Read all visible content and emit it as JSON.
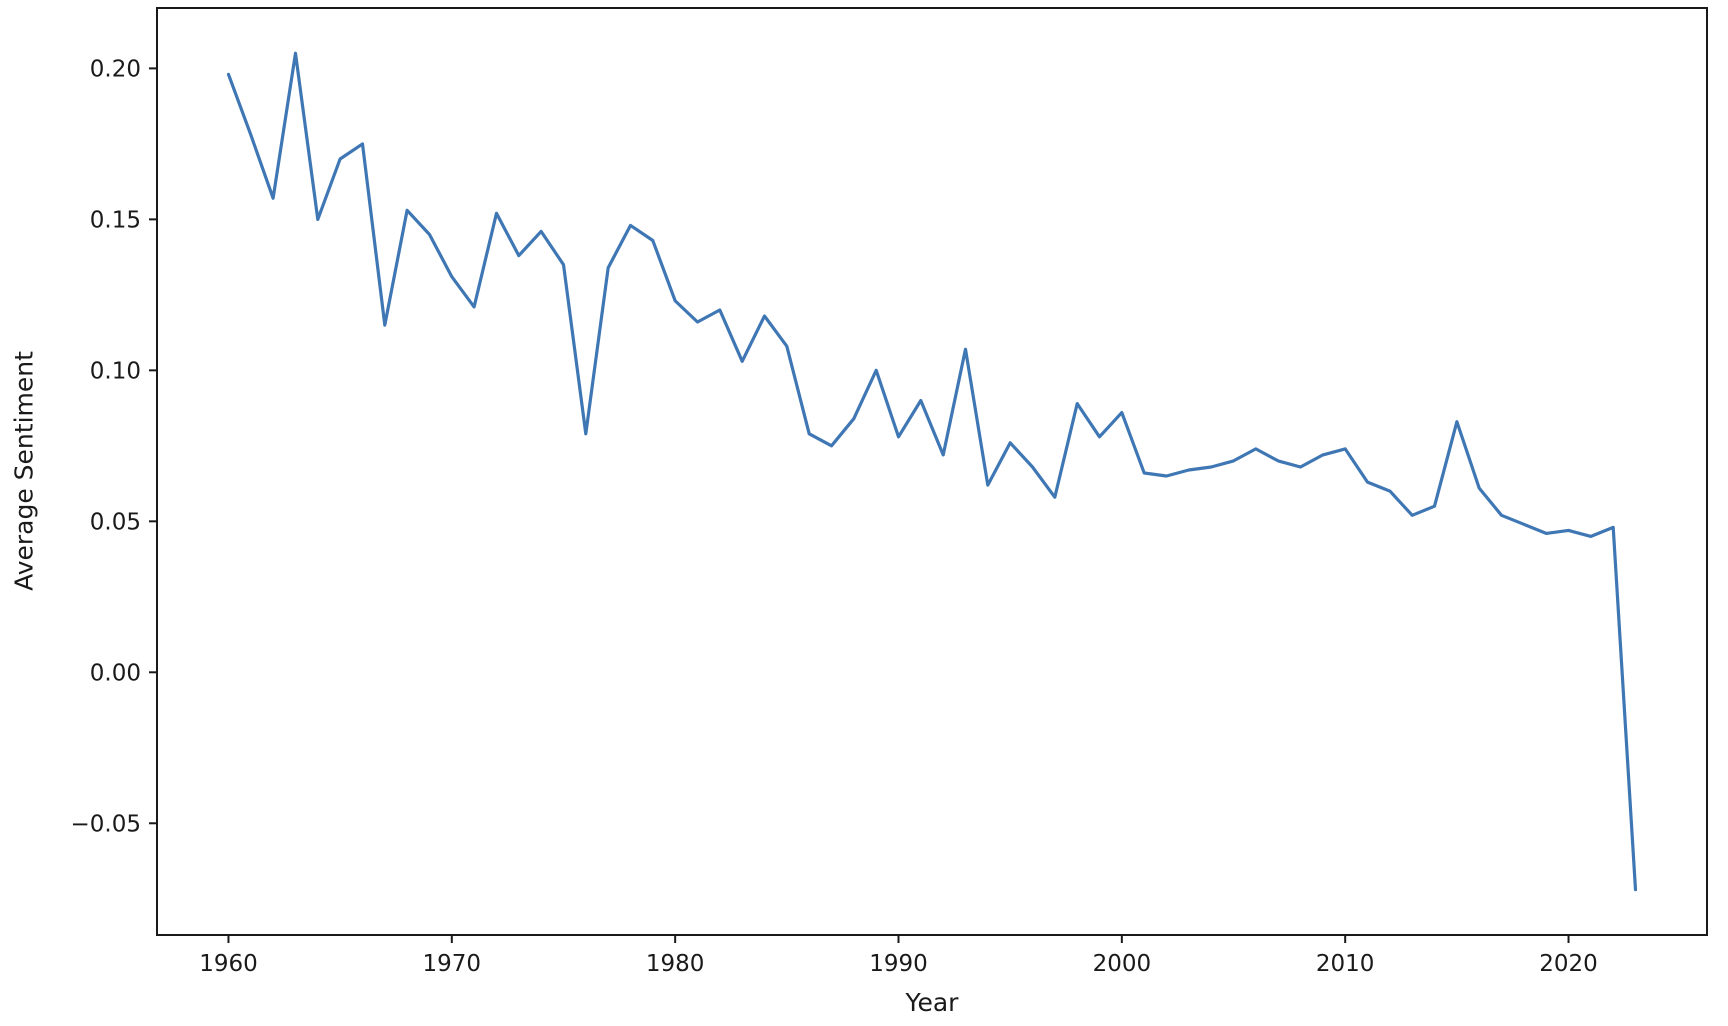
{
  "chart_data": {
    "type": "line",
    "title": "",
    "xlabel": "Year",
    "ylabel": "Average Sentiment",
    "grid": false,
    "legend": null,
    "background": "#ffffff",
    "axis_color": "#1a1a1a",
    "line_color": "#3f77b4",
    "xlim": [
      1956.8,
      2026.2
    ],
    "ylim": [
      -0.087,
      0.22
    ],
    "xticks": {
      "values": [
        1960,
        1970,
        1980,
        1990,
        2000,
        2010,
        2020
      ],
      "labels": [
        "1960",
        "1970",
        "1980",
        "1990",
        "2000",
        "2010",
        "2020"
      ]
    },
    "yticks": {
      "values": [
        -0.05,
        0.0,
        0.05,
        0.1,
        0.15,
        0.2
      ],
      "labels": [
        "−0.05",
        "0.00",
        "0.05",
        "0.10",
        "0.15",
        "0.20"
      ]
    },
    "x": [
      1960,
      1961,
      1962,
      1963,
      1964,
      1965,
      1966,
      1967,
      1968,
      1969,
      1970,
      1971,
      1972,
      1973,
      1974,
      1975,
      1976,
      1977,
      1978,
      1979,
      1980,
      1981,
      1982,
      1983,
      1984,
      1985,
      1986,
      1987,
      1988,
      1989,
      1990,
      1991,
      1992,
      1993,
      1994,
      1995,
      1996,
      1997,
      1998,
      1999,
      2000,
      2001,
      2002,
      2003,
      2004,
      2005,
      2006,
      2007,
      2008,
      2009,
      2010,
      2011,
      2012,
      2013,
      2014,
      2015,
      2016,
      2017,
      2018,
      2019,
      2020,
      2021,
      2022,
      2023
    ],
    "series": [
      {
        "name": "Average Sentiment",
        "values": [
          0.198,
          0.178,
          0.157,
          0.205,
          0.15,
          0.17,
          0.175,
          0.115,
          0.153,
          0.145,
          0.131,
          0.121,
          0.152,
          0.138,
          0.146,
          0.135,
          0.079,
          0.134,
          0.148,
          0.143,
          0.123,
          0.116,
          0.12,
          0.103,
          0.118,
          0.108,
          0.079,
          0.075,
          0.084,
          0.1,
          0.078,
          0.09,
          0.072,
          0.107,
          0.062,
          0.076,
          0.068,
          0.058,
          0.089,
          0.078,
          0.086,
          0.066,
          0.065,
          0.067,
          0.068,
          0.07,
          0.074,
          0.07,
          0.068,
          0.072,
          0.074,
          0.063,
          0.06,
          0.052,
          0.055,
          0.083,
          0.061,
          0.052,
          0.049,
          0.046,
          0.047,
          0.045,
          0.048,
          -0.072
        ]
      }
    ]
  }
}
